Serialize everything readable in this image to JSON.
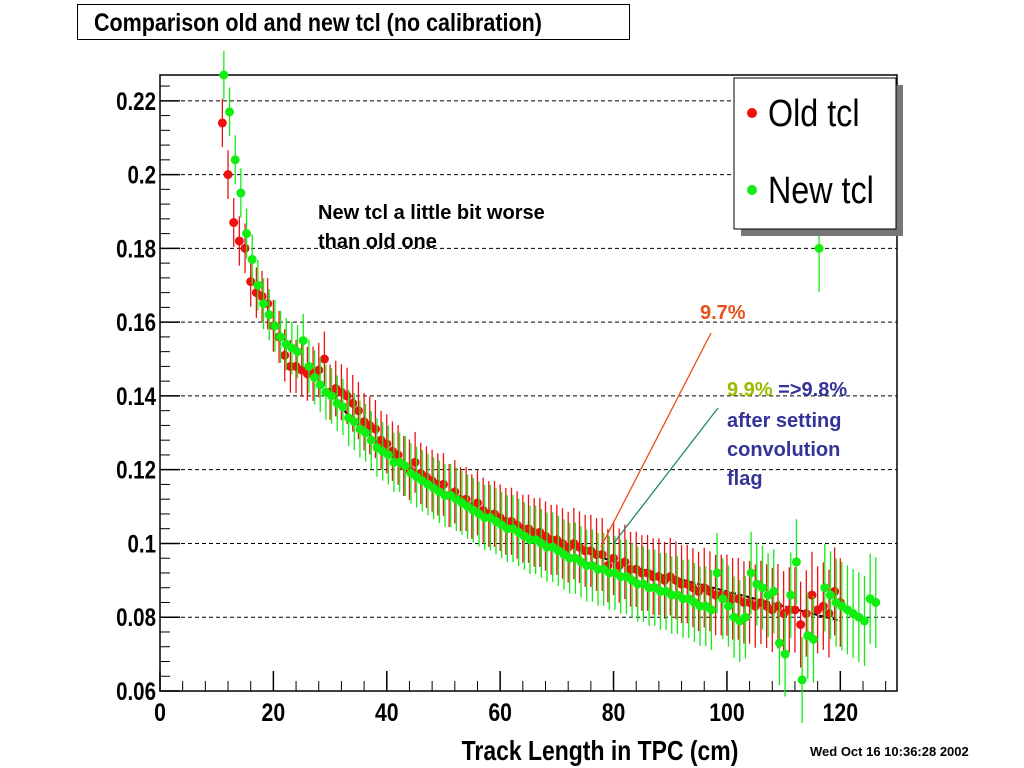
{
  "title": "Comparison old and new tcl (no calibration)",
  "timestamp": "Wed Oct 16 10:36:28 2002",
  "colors": {
    "old": "#ee1111",
    "new": "#11ee11",
    "fit": "#000000",
    "note_orange": "#e8501a",
    "note_green": "#99bb00",
    "note_blue": "#333399",
    "arrow_new": "#228866"
  },
  "chart_data": {
    "type": "scatter",
    "title": "Comparison old and new tcl (no calibration)",
    "xlabel": "Track Length in TPC (cm)",
    "ylabel": "",
    "xlim": [
      0,
      130
    ],
    "ylim": [
      0.06,
      0.227
    ],
    "x_ticks": [
      "0",
      "20",
      "40",
      "60",
      "80",
      "100",
      "120"
    ],
    "y_ticks": [
      "0.06",
      "0.08",
      "0.1",
      "0.12",
      "0.14",
      "0.16",
      "0.18",
      "0.2",
      "0.22"
    ],
    "grid": "horizontal dashed",
    "legend": {
      "placement": "top-right",
      "entries": [
        "Old tcl",
        "New tcl"
      ]
    },
    "series": [
      {
        "name": "Old tcl",
        "color": "#ee1111",
        "x": [
          11,
          12,
          13,
          14,
          15,
          16,
          17,
          18,
          19,
          20,
          21,
          22,
          23,
          24,
          25,
          26,
          27,
          28,
          29,
          30,
          31,
          32,
          33,
          34,
          35,
          36,
          37,
          38,
          39,
          40,
          41,
          42,
          43,
          44,
          45,
          46,
          47,
          48,
          49,
          50,
          51,
          52,
          53,
          54,
          55,
          56,
          57,
          58,
          59,
          60,
          61,
          62,
          63,
          64,
          65,
          66,
          67,
          68,
          69,
          70,
          71,
          72,
          73,
          74,
          75,
          76,
          77,
          78,
          79,
          80,
          81,
          82,
          83,
          84,
          85,
          86,
          87,
          88,
          89,
          90,
          91,
          92,
          93,
          94,
          95,
          96,
          97,
          98,
          99,
          100,
          101,
          102,
          103,
          104,
          105,
          106,
          107,
          108,
          109,
          110,
          111,
          112,
          113,
          114,
          115,
          116,
          117,
          118,
          119,
          120
        ],
        "y": [
          0.214,
          0.2,
          0.187,
          0.182,
          0.18,
          0.171,
          0.168,
          0.167,
          0.165,
          0.159,
          0.156,
          0.151,
          0.148,
          0.148,
          0.147,
          0.146,
          0.146,
          0.147,
          0.15,
          0.141,
          0.142,
          0.141,
          0.14,
          0.138,
          0.136,
          0.133,
          0.132,
          0.131,
          0.128,
          0.127,
          0.125,
          0.124,
          0.121,
          0.12,
          0.122,
          0.119,
          0.118,
          0.117,
          0.116,
          0.116,
          0.113,
          0.114,
          0.112,
          0.112,
          0.11,
          0.111,
          0.109,
          0.108,
          0.108,
          0.107,
          0.106,
          0.106,
          0.105,
          0.104,
          0.104,
          0.103,
          0.103,
          0.102,
          0.101,
          0.101,
          0.1,
          0.099,
          0.1,
          0.099,
          0.098,
          0.098,
          0.097,
          0.097,
          0.094,
          0.096,
          0.094,
          0.095,
          0.093,
          0.093,
          0.092,
          0.092,
          0.091,
          0.091,
          0.09,
          0.091,
          0.09,
          0.089,
          0.089,
          0.088,
          0.087,
          0.088,
          0.087,
          0.086,
          0.086,
          0.086,
          0.085,
          0.085,
          0.084,
          0.084,
          0.083,
          0.084,
          0.083,
          0.082,
          0.083,
          0.081,
          0.082,
          0.082,
          0.078,
          0.081,
          0.086,
          0.082,
          0.083,
          0.081,
          0.087,
          0.084
        ]
      },
      {
        "name": "New tcl",
        "color": "#11ee11",
        "x": [
          11,
          12,
          13,
          14,
          15,
          16,
          17,
          18,
          19,
          20,
          21,
          22,
          23,
          24,
          25,
          26,
          27,
          28,
          29,
          30,
          31,
          32,
          33,
          34,
          35,
          36,
          37,
          38,
          39,
          40,
          41,
          42,
          43,
          44,
          45,
          46,
          47,
          48,
          49,
          50,
          51,
          52,
          53,
          54,
          55,
          56,
          57,
          58,
          59,
          60,
          61,
          62,
          63,
          64,
          65,
          66,
          67,
          68,
          69,
          70,
          71,
          72,
          73,
          74,
          75,
          76,
          77,
          78,
          79,
          80,
          81,
          82,
          83,
          84,
          85,
          86,
          87,
          88,
          89,
          90,
          91,
          92,
          93,
          94,
          95,
          96,
          97,
          98,
          99,
          100,
          101,
          102,
          103,
          104,
          105,
          106,
          107,
          108,
          109,
          110,
          111,
          112,
          113,
          114,
          115,
          116,
          117,
          118,
          119,
          120,
          121,
          122,
          123,
          124,
          125,
          126
        ],
        "y": [
          0.227,
          0.217,
          0.204,
          0.195,
          0.184,
          0.177,
          0.17,
          0.165,
          0.162,
          0.159,
          0.156,
          0.154,
          0.153,
          0.152,
          0.155,
          0.148,
          0.145,
          0.143,
          0.141,
          0.14,
          0.138,
          0.137,
          0.134,
          0.133,
          0.131,
          0.13,
          0.128,
          0.126,
          0.125,
          0.124,
          0.122,
          0.122,
          0.121,
          0.119,
          0.118,
          0.117,
          0.116,
          0.115,
          0.114,
          0.113,
          0.113,
          0.112,
          0.111,
          0.11,
          0.109,
          0.108,
          0.107,
          0.107,
          0.106,
          0.105,
          0.104,
          0.104,
          0.103,
          0.102,
          0.101,
          0.101,
          0.1,
          0.099,
          0.099,
          0.098,
          0.097,
          0.096,
          0.096,
          0.095,
          0.094,
          0.094,
          0.093,
          0.093,
          0.092,
          0.092,
          0.091,
          0.091,
          0.09,
          0.089,
          0.089,
          0.088,
          0.088,
          0.087,
          0.087,
          0.086,
          0.086,
          0.085,
          0.085,
          0.084,
          0.083,
          0.083,
          0.082,
          0.092,
          0.085,
          0.083,
          0.08,
          0.079,
          0.08,
          0.092,
          0.089,
          0.088,
          0.086,
          0.087,
          0.073,
          0.07,
          0.086,
          0.095,
          0.063,
          0.075,
          0.074,
          0.18,
          0.088,
          0.086,
          0.084,
          0.083,
          0.082,
          0.081,
          0.08,
          0.079,
          0.085,
          0.084
        ]
      }
    ],
    "fit_curve": {
      "x": [
        30,
        35,
        40,
        45,
        50,
        55,
        60,
        65,
        70,
        75,
        80,
        85,
        90,
        95,
        100,
        105,
        110,
        115,
        120
      ],
      "y": [
        0.14,
        0.132,
        0.125,
        0.119,
        0.114,
        0.11,
        0.106,
        0.103,
        0.1,
        0.098,
        0.095,
        0.093,
        0.091,
        0.089,
        0.087,
        0.085,
        0.083,
        0.081,
        0.079
      ]
    },
    "annotations": [
      {
        "id": "note_worse",
        "lines": [
          "New tcl a little bit worse",
          "than old one"
        ],
        "color": "#000000"
      },
      {
        "id": "note_old_pct",
        "text": "9.7%",
        "color": "#e8501a",
        "points_to": [
          79,
          0.099
        ]
      },
      {
        "id": "note_new_pct",
        "text": "9.9%",
        "color": "#99bb00",
        "text2": " =>9.8%",
        "color2": "#333399",
        "lines": [
          "after setting",
          "convolution",
          "flag"
        ],
        "points_to": [
          80,
          0.1
        ]
      }
    ]
  }
}
